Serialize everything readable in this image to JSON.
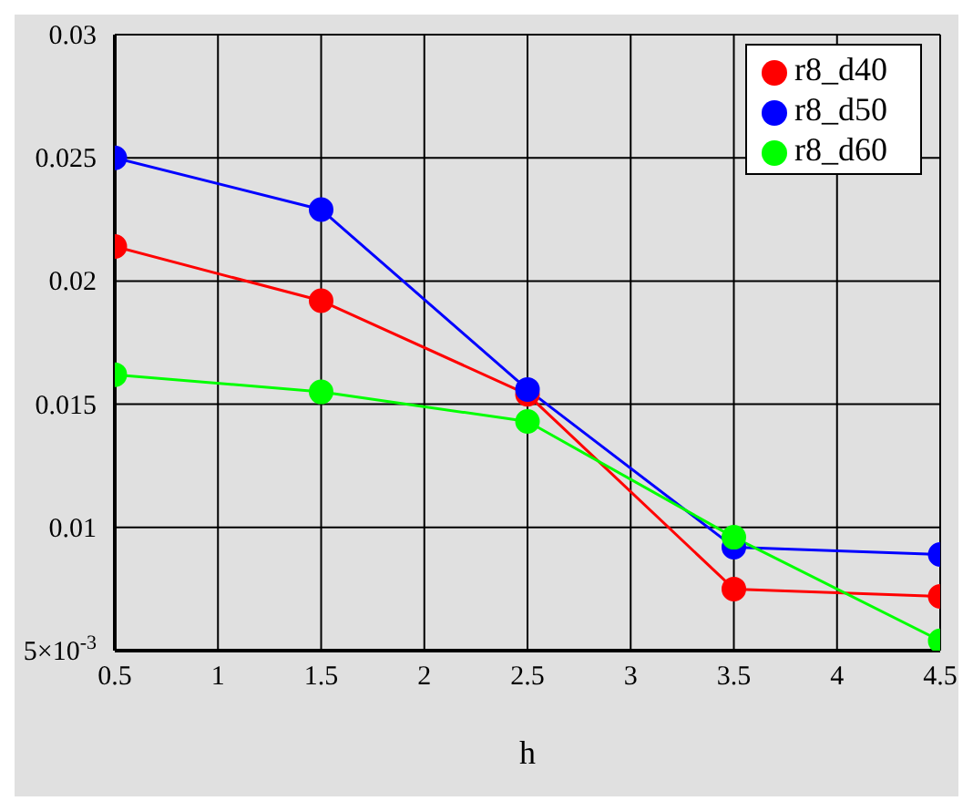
{
  "chart_data": {
    "type": "line",
    "xlabel": "h",
    "x": [
      0.5,
      1.5,
      2.5,
      3.5,
      4.5
    ],
    "series": [
      {
        "name": "r8_d40",
        "color": "#ff0000",
        "values": [
          0.0214,
          0.0192,
          0.0154,
          0.0075,
          0.0072
        ]
      },
      {
        "name": "r8_d50",
        "color": "#0000ff",
        "values": [
          0.025,
          0.0229,
          0.0156,
          0.0092,
          0.0089
        ]
      },
      {
        "name": "r8_d60",
        "color": "#00ff00",
        "values": [
          0.0162,
          0.0155,
          0.0143,
          0.0096,
          0.0054
        ]
      }
    ],
    "xlim": [
      0.5,
      4.5
    ],
    "xticks": [
      0.5,
      1,
      1.5,
      2,
      2.5,
      3,
      3.5,
      4,
      4.5
    ],
    "ylim": [
      0.005,
      0.03
    ],
    "yticks": [
      {
        "value": 0.005,
        "label": "5×10$^{-3}$"
      },
      0.01,
      0.015,
      0.02,
      0.025,
      0.03
    ],
    "grid": true,
    "legend": "top right",
    "marker": "circle",
    "line_style": "solid"
  }
}
